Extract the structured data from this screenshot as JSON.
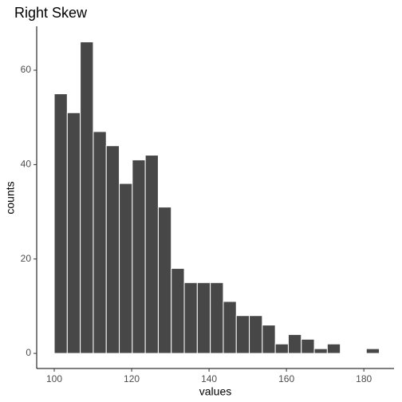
{
  "chart_data": {
    "type": "histogram",
    "title": "Right Skew",
    "x_label": "values",
    "y_label": "counts",
    "bins": [
      100,
      103.36,
      106.72,
      110.08,
      113.44,
      116.8,
      120.16,
      123.52,
      126.88,
      130.24,
      133.6,
      136.96,
      140.32,
      143.68,
      147.04,
      150.4,
      153.76,
      157.12,
      160.48,
      163.84,
      167.2,
      170.56,
      173.92,
      177.28,
      180.64,
      184
    ],
    "values": [
      55,
      51,
      66,
      47,
      44,
      36,
      41,
      42,
      31,
      18,
      15,
      15,
      15,
      11,
      8,
      8,
      6,
      2,
      4,
      3,
      1,
      2,
      0,
      0,
      1
    ],
    "color": "#474747",
    "xlim": [
      95.46,
      187.8
    ],
    "xticks": [
      100,
      120,
      140,
      160,
      180
    ],
    "ylim": [
      -3.2,
      69.3
    ],
    "yticks": [
      0,
      20,
      40,
      60
    ]
  }
}
